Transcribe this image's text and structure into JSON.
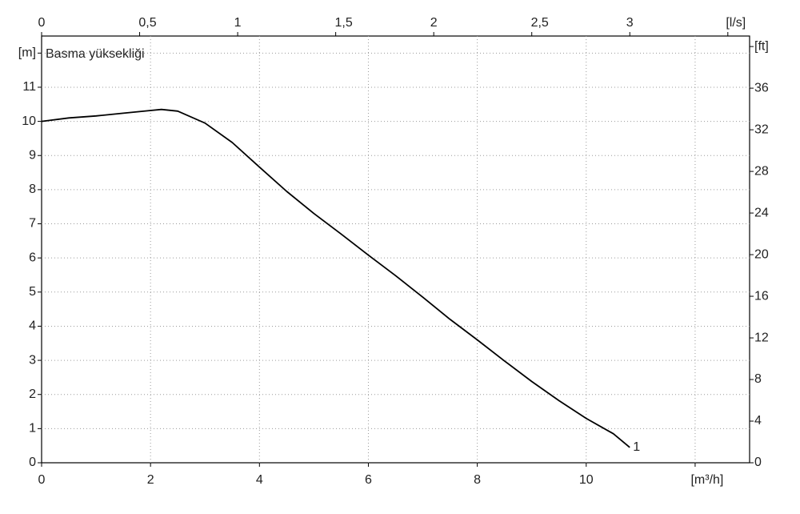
{
  "chart_data": {
    "type": "line",
    "title": "Basma yüksekliği",
    "x": [
      0,
      0.5,
      1,
      1.5,
      2,
      2.2,
      2.5,
      3,
      3.5,
      4,
      4.5,
      5,
      5.5,
      6,
      6.5,
      7,
      7.5,
      8,
      8.5,
      9,
      9.5,
      10,
      10.5,
      10.8
    ],
    "series": [
      {
        "name": "1",
        "color": "#000000",
        "values": [
          10.0,
          10.1,
          10.16,
          10.24,
          10.32,
          10.35,
          10.3,
          9.95,
          9.38,
          8.66,
          7.95,
          7.3,
          6.7,
          6.08,
          5.48,
          4.85,
          4.2,
          3.6,
          2.98,
          2.38,
          1.82,
          1.3,
          0.85,
          0.45
        ]
      }
    ],
    "xlim": [
      0,
      13
    ],
    "xticks": [
      0,
      2,
      4,
      6,
      8,
      10,
      {
        "value": 12,
        "label": "[m³/h]"
      }
    ],
    "x2lim": [
      0,
      3.611
    ],
    "x2ticks": [
      0,
      {
        "value": 0.5,
        "label": "0,5"
      },
      1,
      {
        "value": 1.5,
        "label": "1,5"
      },
      2,
      {
        "value": 2.5,
        "label": "2,5"
      },
      3,
      {
        "value": 3.5,
        "label": "[l/s]"
      }
    ],
    "ylim": [
      0,
      12.5
    ],
    "yticks": [
      0,
      1,
      2,
      3,
      4,
      5,
      6,
      7,
      8,
      9,
      10,
      11,
      {
        "value": 12,
        "label": "[m]"
      }
    ],
    "y2lim": [
      0,
      41.01
    ],
    "y2ticks": [
      0,
      4,
      8,
      12,
      16,
      20,
      24,
      28,
      32,
      36,
      {
        "value": 40,
        "label": "[ft]"
      }
    ],
    "grid": true
  }
}
